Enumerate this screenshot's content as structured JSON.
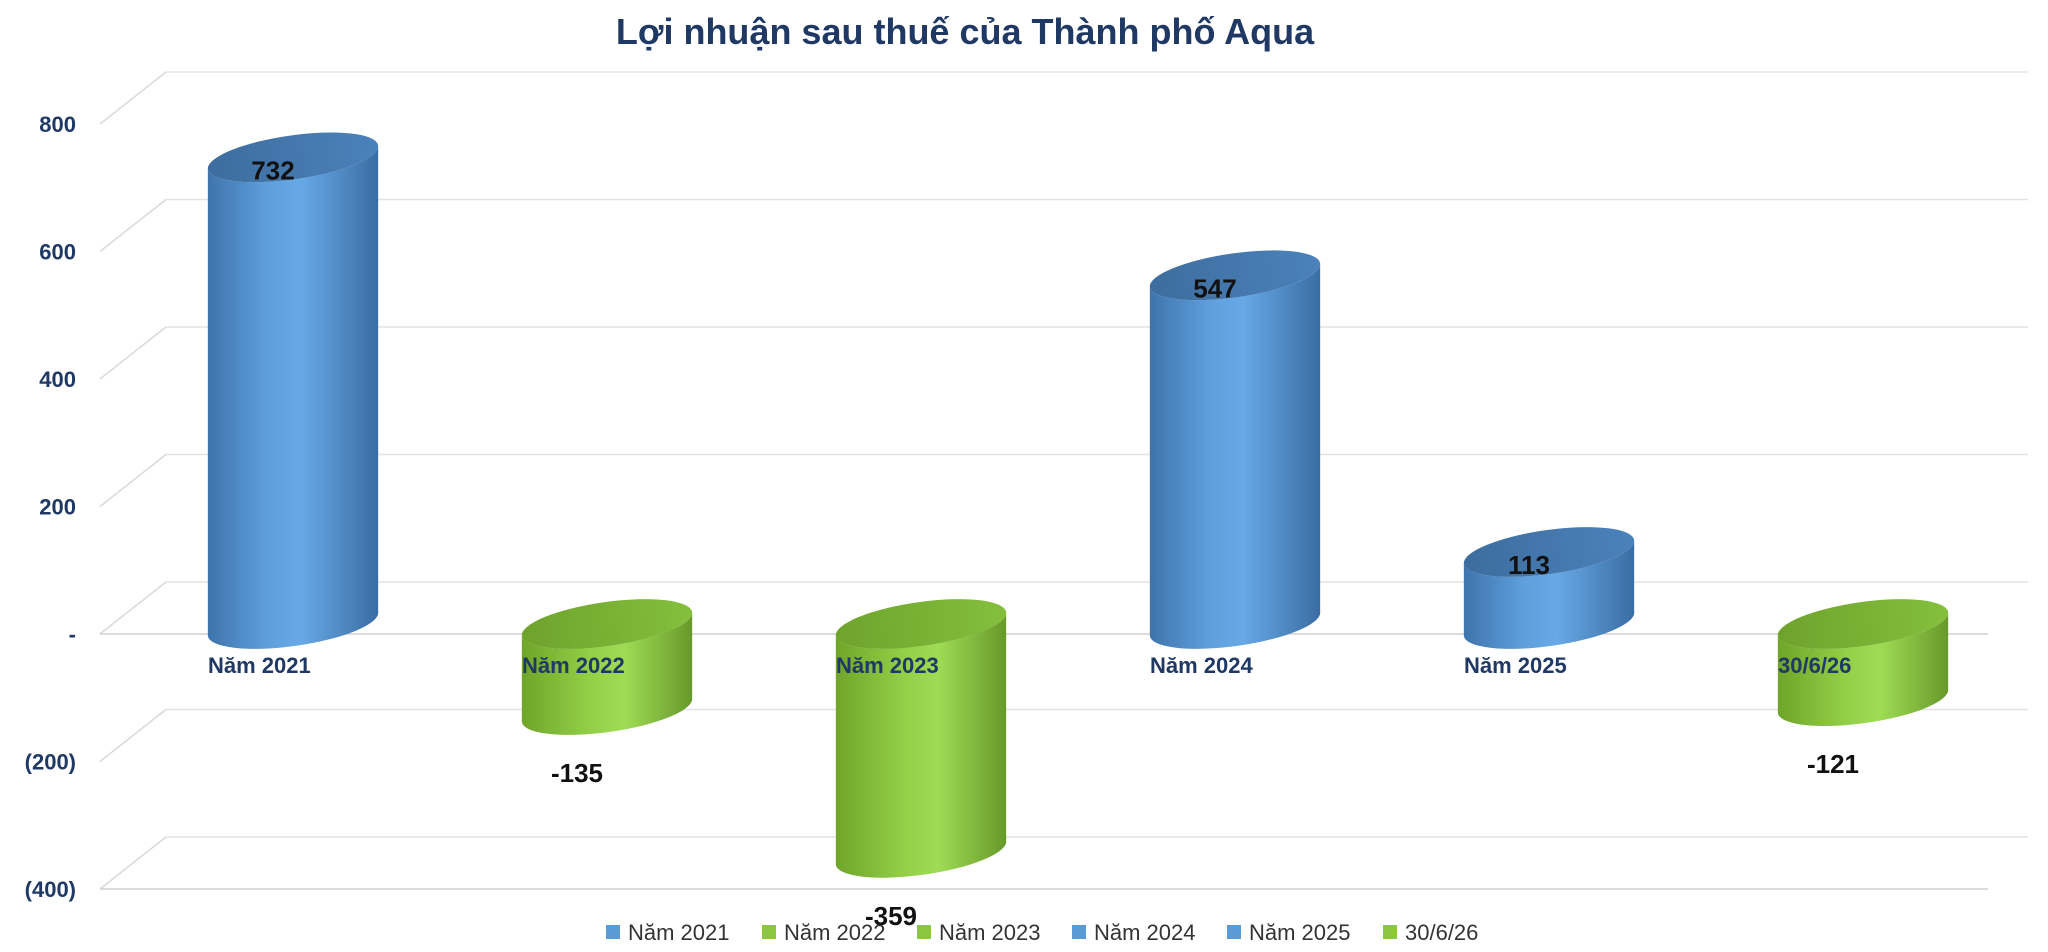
{
  "chart_data": {
    "type": "bar",
    "title": "Lợi nhuận sau thuế của Thành phố Aqua",
    "xlabel": "",
    "ylabel": "",
    "categories": [
      "Năm 2021",
      "Năm 2022",
      "Năm 2023",
      "Năm 2024",
      "Năm 2025",
      "30/6/26"
    ],
    "values": [
      732,
      -135,
      -359,
      547,
      113,
      -121
    ],
    "data_labels": [
      "732",
      "-135",
      "-359",
      "547",
      "113",
      "-121"
    ],
    "ylim": [
      -400,
      800
    ],
    "yticks": [
      800,
      600,
      400,
      200,
      0,
      -200,
      -400
    ],
    "ytick_labels": [
      "800",
      "600",
      "400",
      "200",
      "-",
      "(200)",
      "(400)"
    ],
    "legend": {
      "position": "bottom",
      "entries": [
        "Năm 2021",
        "Năm 2022",
        "Năm 2023",
        "Năm 2024",
        "Năm 2025",
        "30/6/26"
      ]
    },
    "grid": true,
    "style": "3d-cylinder",
    "colors": {
      "positive": "#5b9bd5",
      "negative": "#8dc63f"
    }
  }
}
